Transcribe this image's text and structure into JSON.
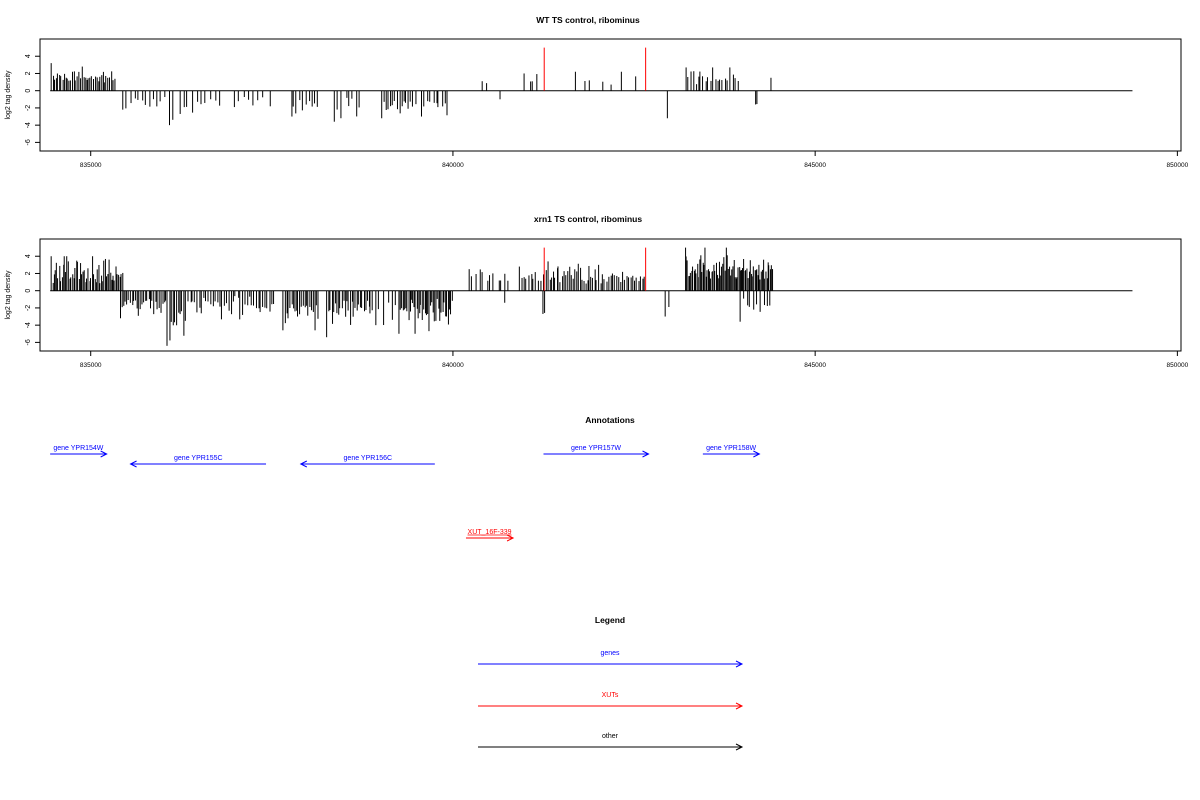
{
  "chart_data": [
    {
      "type": "bar",
      "title": "WT TS control, ribominus",
      "ylabel": "log2 tag density",
      "xlim": [
        834300,
        850050
      ],
      "ylim": [
        -7,
        6
      ],
      "x_ticks": [
        835000,
        840000,
        845000,
        850000
      ],
      "y_ticks": [
        -6,
        -4,
        -2,
        0,
        2,
        4
      ],
      "baseline": {
        "start": 834440,
        "end": 849380
      },
      "colors": {
        "bars": "#000000",
        "markers": "#ff0000"
      },
      "markers": [
        {
          "x": 841260,
          "y0": 0,
          "y1": 5.0
        },
        {
          "x": 842660,
          "y0": 0,
          "y1": 5.0
        }
      ],
      "positive": {
        "clusters": [
          {
            "x0": 834450,
            "x1": 835340,
            "n": 40,
            "min": 0.8,
            "max": 3.2
          },
          {
            "x0": 840400,
            "x1": 840500,
            "n": 2,
            "min": 0.8,
            "max": 1.1
          },
          {
            "x0": 840980,
            "x1": 841200,
            "n": 4,
            "min": 0.8,
            "max": 2.0
          },
          {
            "x0": 841600,
            "x1": 842550,
            "n": 7,
            "min": 0.6,
            "max": 2.2
          },
          {
            "x0": 843200,
            "x1": 843950,
            "n": 22,
            "min": 0.6,
            "max": 2.7
          },
          {
            "x0": 844380,
            "x1": 844400,
            "n": 1,
            "min": 1.5,
            "max": 1.5
          }
        ]
      },
      "negative": {
        "clusters": [
          {
            "x0": 835430,
            "x1": 836050,
            "n": 12,
            "min": 0.6,
            "max": 2.2
          },
          {
            "x0": 836050,
            "x1": 836150,
            "n": 2,
            "min": 3.0,
            "max": 4.0
          },
          {
            "x0": 836200,
            "x1": 836800,
            "n": 10,
            "min": 0.6,
            "max": 2.7
          },
          {
            "x0": 836950,
            "x1": 837500,
            "n": 8,
            "min": 0.6,
            "max": 1.9
          },
          {
            "x0": 837750,
            "x1": 838150,
            "n": 10,
            "min": 0.8,
            "max": 3.0
          },
          {
            "x0": 838350,
            "x1": 838750,
            "n": 8,
            "min": 0.8,
            "max": 3.6
          },
          {
            "x0": 839000,
            "x1": 839500,
            "n": 16,
            "min": 0.8,
            "max": 3.2
          },
          {
            "x0": 839550,
            "x1": 839950,
            "n": 10,
            "min": 0.6,
            "max": 3.0
          },
          {
            "x0": 840640,
            "x1": 840660,
            "n": 1,
            "min": 1.0,
            "max": 1.0
          },
          {
            "x0": 842950,
            "x1": 842970,
            "n": 1,
            "min": 3.2,
            "max": 3.2
          },
          {
            "x0": 844170,
            "x1": 844200,
            "n": 2,
            "min": 1.5,
            "max": 1.6
          }
        ]
      }
    },
    {
      "type": "bar",
      "title": "xrn1 TS control, ribominus",
      "ylabel": "log2 tag density",
      "xlim": [
        834300,
        850050
      ],
      "ylim": [
        -7,
        6
      ],
      "x_ticks": [
        835000,
        840000,
        845000,
        850000
      ],
      "y_ticks": [
        -6,
        -4,
        -2,
        0,
        2,
        4
      ],
      "baseline": {
        "start": 834440,
        "end": 849380
      },
      "colors": {
        "bars": "#000000",
        "markers": "#ff0000"
      },
      "markers": [
        {
          "x": 841260,
          "y0": 0,
          "y1": 5.0
        },
        {
          "x": 842660,
          "y0": 0,
          "y1": 5.0
        }
      ],
      "positive": {
        "clusters": [
          {
            "x0": 834450,
            "x1": 835450,
            "n": 55,
            "min": 0.8,
            "max": 4.0
          },
          {
            "x0": 840200,
            "x1": 840800,
            "n": 12,
            "min": 0.8,
            "max": 2.5
          },
          {
            "x0": 840900,
            "x1": 841300,
            "n": 12,
            "min": 0.8,
            "max": 2.8
          },
          {
            "x0": 841300,
            "x1": 842000,
            "n": 28,
            "min": 0.8,
            "max": 3.4
          },
          {
            "x0": 842000,
            "x1": 842660,
            "n": 24,
            "min": 0.8,
            "max": 3.0
          },
          {
            "x0": 843200,
            "x1": 844420,
            "n": 80,
            "min": 1.0,
            "max": 5.0
          }
        ]
      },
      "negative": {
        "clusters": [
          {
            "x0": 835400,
            "x1": 836050,
            "n": 28,
            "min": 0.8,
            "max": 3.2
          },
          {
            "x0": 836050,
            "x1": 836300,
            "n": 10,
            "min": 2.0,
            "max": 6.4
          },
          {
            "x0": 836300,
            "x1": 837550,
            "n": 40,
            "min": 0.6,
            "max": 3.5
          },
          {
            "x0": 837650,
            "x1": 838150,
            "n": 22,
            "min": 1.0,
            "max": 4.6
          },
          {
            "x0": 838250,
            "x1": 838900,
            "n": 28,
            "min": 0.8,
            "max": 5.4
          },
          {
            "x0": 838900,
            "x1": 839250,
            "n": 6,
            "min": 0.8,
            "max": 4.0
          },
          {
            "x0": 839250,
            "x1": 840000,
            "n": 40,
            "min": 0.8,
            "max": 5.0
          },
          {
            "x0": 840700,
            "x1": 840730,
            "n": 1,
            "min": 1.4,
            "max": 1.4
          },
          {
            "x0": 841240,
            "x1": 841280,
            "n": 2,
            "min": 2.5,
            "max": 2.7
          },
          {
            "x0": 842900,
            "x1": 843000,
            "n": 2,
            "min": 1.2,
            "max": 3.0
          },
          {
            "x0": 843950,
            "x1": 844400,
            "n": 10,
            "min": 0.8,
            "max": 3.6
          }
        ]
      }
    }
  ],
  "annotations": {
    "title": "Annotations",
    "features": [
      {
        "label": "gene YPR154W",
        "kind": "gene",
        "strand": "+",
        "start": 834440,
        "end": 835220,
        "row": 0
      },
      {
        "label": "gene YPR155C",
        "kind": "gene",
        "strand": "-",
        "start": 835550,
        "end": 837420,
        "row": 1
      },
      {
        "label": "gene YPR156C",
        "kind": "gene",
        "strand": "-",
        "start": 837900,
        "end": 839750,
        "row": 1
      },
      {
        "label": "gene YPR157W",
        "kind": "gene",
        "strand": "+",
        "start": 841250,
        "end": 842700,
        "row": 0
      },
      {
        "label": "gene YPR158W",
        "kind": "gene",
        "strand": "+",
        "start": 843450,
        "end": 844230,
        "row": 0
      },
      {
        "label": "XUT_16F-339",
        "kind": "xut",
        "strand": "+",
        "start": 840180,
        "end": 840830,
        "row": 2
      }
    ]
  },
  "legend": {
    "title": "Legend",
    "items": [
      {
        "label": "genes",
        "color": "#0000ff"
      },
      {
        "label": "XUTs",
        "color": "#ff0000"
      },
      {
        "label": "other",
        "color": "#000000"
      }
    ]
  }
}
